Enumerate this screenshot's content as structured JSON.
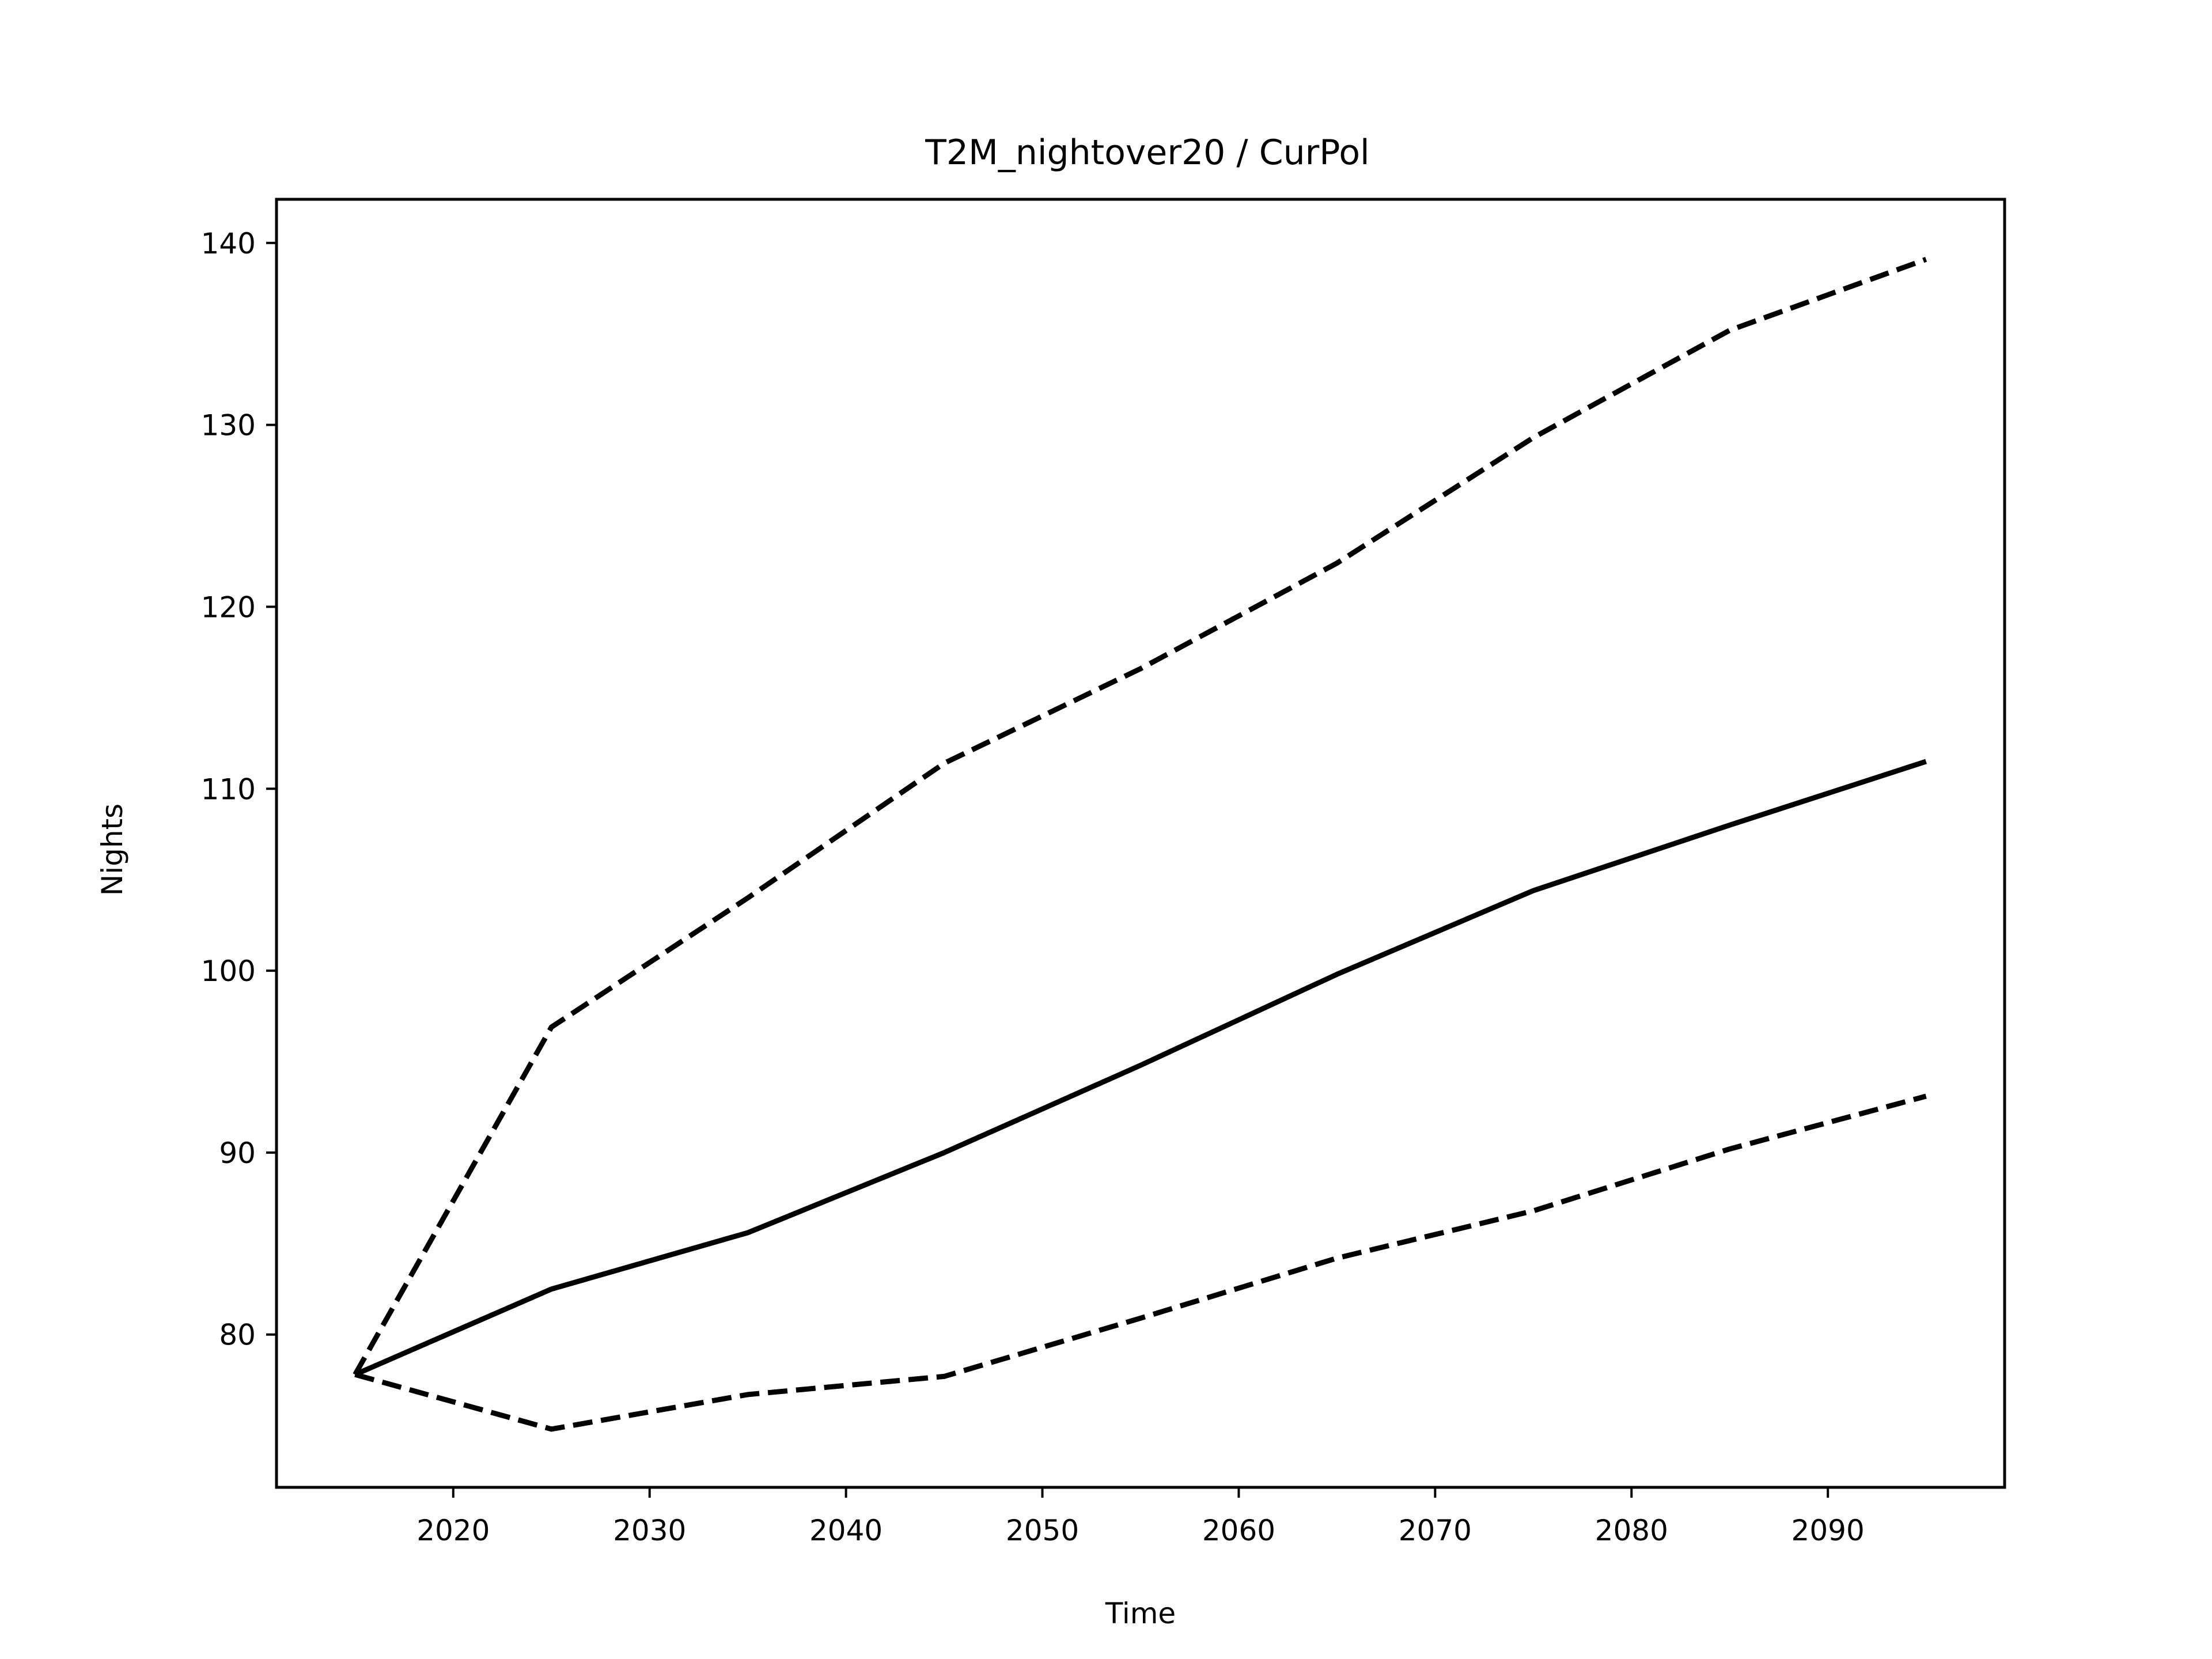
{
  "chart_data": {
    "type": "line",
    "title": "T2M_nightover20 / CurPol",
    "xlabel": "Time",
    "ylabel": "Nights",
    "xlim": [
      2011,
      2099
    ],
    "ylim": [
      71.6,
      142.4
    ],
    "xticks": [
      2020,
      2030,
      2040,
      2050,
      2060,
      2070,
      2080,
      2090
    ],
    "yticks": [
      80,
      90,
      100,
      110,
      120,
      130,
      140
    ],
    "grid": false,
    "legend": "none",
    "x": [
      2015,
      2025,
      2035,
      2045,
      2055,
      2065,
      2075,
      2085,
      2095
    ],
    "series": [
      {
        "style": "solid",
        "color": "#000000",
        "values": [
          77.8,
          82.5,
          85.6,
          90.0,
          94.8,
          99.8,
          104.4,
          108.0,
          111.5
        ]
      },
      {
        "style": "dashed",
        "color": "#000000",
        "values": [
          77.8,
          96.9,
          104.0,
          111.4,
          116.6,
          122.4,
          129.3,
          135.2,
          139.1
        ]
      },
      {
        "style": "dashed",
        "color": "#000000",
        "values": [
          77.8,
          74.8,
          76.7,
          77.7,
          80.9,
          84.2,
          86.8,
          90.2,
          93.1
        ]
      }
    ]
  }
}
